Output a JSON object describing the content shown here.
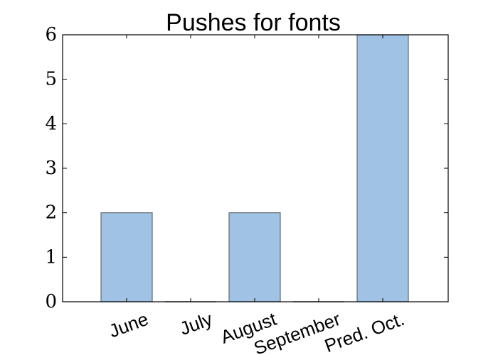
{
  "chart_data": {
    "type": "bar",
    "title": "Pushes for fonts",
    "categories": [
      "June",
      "July",
      "August",
      "September",
      "Pred. Oct."
    ],
    "values": [
      2,
      0,
      2,
      0,
      6
    ],
    "xlabel": "",
    "ylabel": "",
    "ylim": [
      0,
      6
    ],
    "yticks": [
      0,
      1,
      2,
      3,
      4,
      5,
      6
    ],
    "grid": false,
    "legend": "none",
    "bar_color": "#a0c2e5",
    "bar_edge_color": "#5f6a72"
  }
}
